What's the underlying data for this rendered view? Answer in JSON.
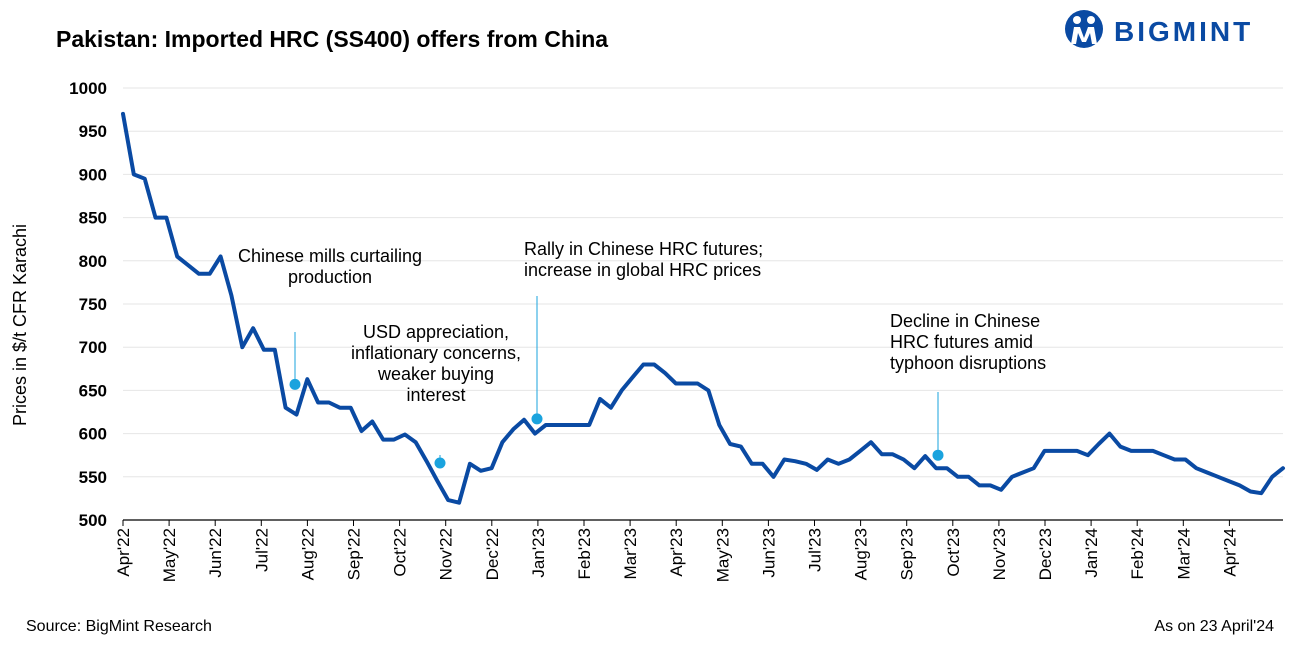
{
  "header": {
    "title": "Pakistan: Imported HRC (SS400) offers from China",
    "logo_text": "BIGMINT"
  },
  "footer": {
    "source": "Source: BigMint Research",
    "as_of": "As on 23 April'24"
  },
  "colors": {
    "line": "#0a4aa3",
    "marker": "#1aa3de",
    "brand": "#0a4aa3",
    "grid": "#e6e6e6"
  },
  "chart_data": {
    "type": "line",
    "title": "Pakistan: Imported HRC (SS400) offers from China",
    "xlabel": "",
    "ylabel": "Prices in $/t CFR Karachi",
    "ylim": [
      500,
      1000
    ],
    "yticks": [
      1000,
      950,
      900,
      850,
      800,
      750,
      700,
      650,
      600,
      550,
      500
    ],
    "grid": true,
    "x_tick_labels": [
      "Apr'22",
      "May'22",
      "Jun'22",
      "Jul'22",
      "Aug'22",
      "Sep'22",
      "Oct'22",
      "Nov'22",
      "Dec'22",
      "Jan'23",
      "Feb'23",
      "Mar'23",
      "Apr'23",
      "May'23",
      "Jun'23",
      "Jul'23",
      "Aug'23",
      "Sep'23",
      "Oct'23",
      "Nov'23",
      "Dec'23",
      "Jan'24",
      "Feb'24",
      "Mar'24",
      "Apr'24"
    ],
    "series": [
      {
        "values": [
          970,
          900,
          895,
          850,
          850,
          805,
          795,
          785,
          785,
          805,
          760,
          700,
          722,
          697,
          697,
          630,
          622,
          663,
          636,
          636,
          630,
          630,
          603,
          614,
          593,
          593,
          599,
          590,
          568,
          545,
          523,
          520,
          565,
          557,
          560,
          590,
          605,
          616,
          600,
          610,
          610,
          610,
          610,
          610,
          640,
          630,
          650,
          665,
          680,
          680,
          670,
          658,
          658,
          658,
          650,
          610,
          588,
          585,
          565,
          565,
          550,
          570,
          568,
          565,
          558,
          570,
          565,
          570,
          580,
          590,
          576,
          576,
          570,
          560,
          574,
          560,
          560,
          550,
          550,
          540,
          540,
          535,
          550,
          555,
          560,
          580,
          580,
          580,
          580,
          575,
          588,
          600,
          585,
          580,
          580,
          580,
          575,
          570,
          570,
          560,
          555,
          550,
          545,
          540,
          533,
          531,
          550,
          560
        ]
      }
    ],
    "annotations": [
      {
        "text_lines": [
          "Chinese mills curtailing",
          "production"
        ],
        "marker_value": 657
      },
      {
        "text_lines": [
          "USD appreciation,",
          "inflationary concerns,",
          "weaker buying",
          "interest"
        ],
        "marker_value": 566
      },
      {
        "text_lines": [
          "Rally in Chinese HRC futures;",
          "increase in global HRC prices"
        ],
        "marker_value": 617
      },
      {
        "text_lines": [
          "Decline in Chinese",
          "HRC futures amid",
          "typhoon disruptions"
        ],
        "marker_value": 575
      }
    ]
  }
}
